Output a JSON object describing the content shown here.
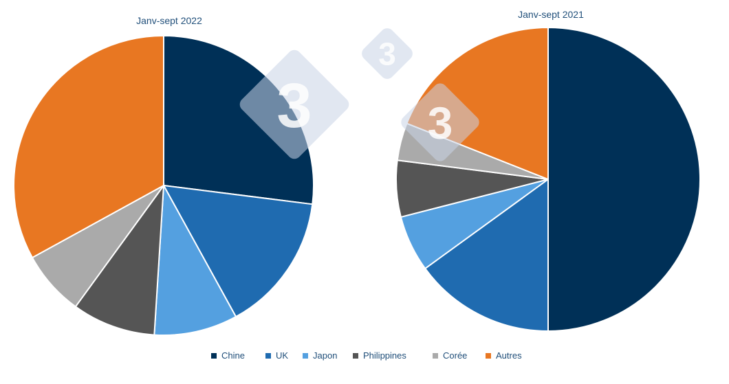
{
  "chart_data": [
    {
      "type": "pie",
      "title": "Janv-sept 2022",
      "slices": [
        {
          "label": "Chine",
          "value": 27,
          "display": "27%"
        },
        {
          "label": "UK",
          "value": 15,
          "display": "15%"
        },
        {
          "label": "Japon",
          "value": 9,
          "display": "9%"
        },
        {
          "label": "Philippines",
          "value": 9,
          "display": "9%"
        },
        {
          "label": "Corée",
          "value": 7,
          "display": "7%"
        },
        {
          "label": "Autres",
          "value": 33,
          "display": "33%"
        }
      ]
    },
    {
      "type": "pie",
      "title": "Janv-sept 2021",
      "slices": [
        {
          "label": "Chine",
          "value": 50,
          "display": "50%"
        },
        {
          "label": "UK",
          "value": 15,
          "display": "15%"
        },
        {
          "label": "Japon",
          "value": 6,
          "display": "6%"
        },
        {
          "label": "Philippines",
          "value": 6,
          "display": "6%"
        },
        {
          "label": "Corée",
          "value": 4,
          "display": "4%"
        },
        {
          "label": "Autres",
          "value": 19,
          "display": "19%"
        }
      ]
    }
  ],
  "legend": {
    "placement": "bottom",
    "items": [
      {
        "label": "Chine",
        "color": "#003057"
      },
      {
        "label": "UK",
        "color": "#1f6bb0"
      },
      {
        "label": "Japon",
        "color": "#54a0e0"
      },
      {
        "label": "Philippines",
        "color": "#555555"
      },
      {
        "label": "Corée",
        "color": "#aaaaaa"
      },
      {
        "label": "Autres",
        "color": "#e87722"
      }
    ]
  },
  "watermark": {
    "text": "3"
  }
}
